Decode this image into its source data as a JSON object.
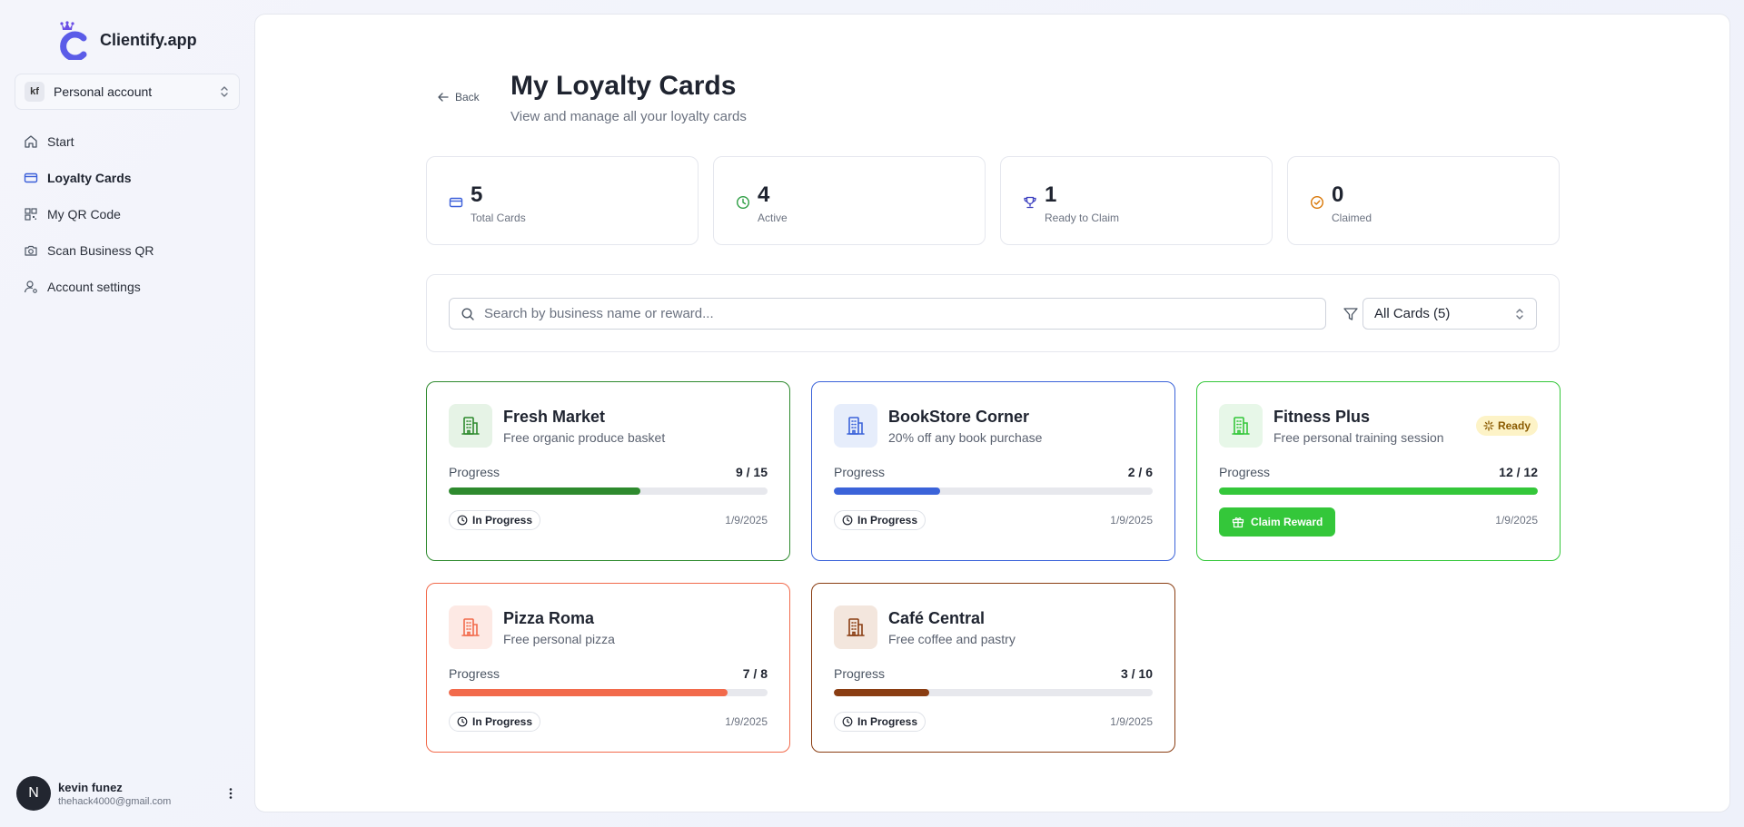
{
  "app": {
    "name": "Clientify.app"
  },
  "sidebar": {
    "account": {
      "initials": "kf",
      "label": "Personal account"
    },
    "items": [
      {
        "label": "Start",
        "icon": "home-icon",
        "active": false
      },
      {
        "label": "Loyalty Cards",
        "icon": "credit-card-icon",
        "active": true
      },
      {
        "label": "My QR Code",
        "icon": "qr-code-icon",
        "active": false
      },
      {
        "label": "Scan Business QR",
        "icon": "camera-icon",
        "active": false
      },
      {
        "label": "Account settings",
        "icon": "user-settings-icon",
        "active": false
      }
    ],
    "user": {
      "initial": "N",
      "name": "kevin funez",
      "email": "thehack4000@gmail.com"
    }
  },
  "header": {
    "back_label": "Back",
    "title": "My Loyalty Cards",
    "subtitle": "View and manage all your loyalty cards"
  },
  "stats": [
    {
      "value": "5",
      "label": "Total Cards",
      "icon": "card-icon",
      "color": "#3b5fd9"
    },
    {
      "value": "4",
      "label": "Active",
      "icon": "clock-icon",
      "color": "#2e9e44"
    },
    {
      "value": "1",
      "label": "Ready to Claim",
      "icon": "trophy-icon",
      "color": "#3b3fbf"
    },
    {
      "value": "0",
      "label": "Claimed",
      "icon": "check-circle-icon",
      "color": "#d97706"
    }
  ],
  "search": {
    "placeholder": "Search by business name or reward...",
    "value": ""
  },
  "filter": {
    "selected": "All Cards (5)"
  },
  "cards": [
    {
      "name": "Fresh Market",
      "reward": "Free organic produce basket",
      "progress_label": "Progress",
      "count": "9 / 15",
      "fraction": 0.6,
      "status": "In Progress",
      "date": "1/9/2025",
      "color": "#2e8a2e",
      "tint": "#e6f3e6"
    },
    {
      "name": "BookStore Corner",
      "reward": "20% off any book purchase",
      "progress_label": "Progress",
      "count": "2 / 6",
      "fraction": 0.333,
      "status": "In Progress",
      "date": "1/9/2025",
      "color": "#3b63d9",
      "tint": "#e6edfb"
    },
    {
      "name": "Fitness Plus",
      "reward": "Free personal training session",
      "progress_label": "Progress",
      "count": "12 / 12",
      "fraction": 1.0,
      "badge": "Ready",
      "action": "Claim Reward",
      "date": "1/9/2025",
      "color": "#34c73a",
      "tint": "#e7f7e8"
    },
    {
      "name": "Pizza Roma",
      "reward": "Free personal pizza",
      "progress_label": "Progress",
      "count": "7 / 8",
      "fraction": 0.875,
      "status": "In Progress",
      "date": "1/9/2025",
      "color": "#f26a4b",
      "tint": "#fde9e4"
    },
    {
      "name": "Café Central",
      "reward": "Free coffee and pastry",
      "progress_label": "Progress",
      "count": "3 / 10",
      "fraction": 0.3,
      "status": "In Progress",
      "date": "1/9/2025",
      "color": "#8a3d12",
      "tint": "#f3e6dd"
    }
  ]
}
